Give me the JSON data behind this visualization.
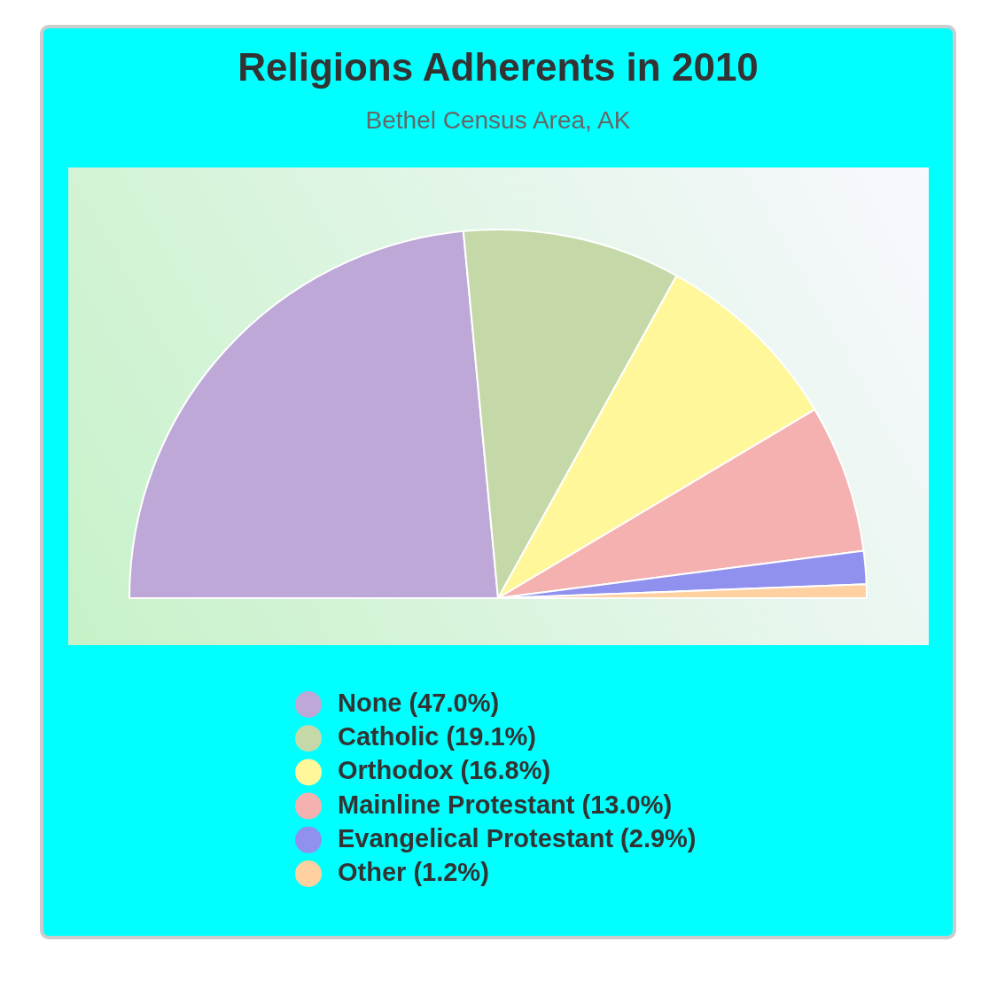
{
  "chart_data": {
    "type": "pie",
    "title": "Religions Adherents in 2010",
    "subtitle": "Bethel Census Area, AK",
    "categories": [
      "None (47.0%)",
      "Catholic (19.1%)",
      "Orthodox (16.8%)",
      "Mainline Protestant (13.0%)",
      "Evangelical Protestant (2.9%)",
      "Other (1.2%)"
    ],
    "values": [
      47.0,
      19.1,
      16.8,
      13.0,
      2.9,
      1.2
    ],
    "colors": [
      "#bea8d8",
      "#c5d9a8",
      "#fff799",
      "#f5b0b0",
      "#9090ee",
      "#ffd0a0"
    ],
    "legend": "bottom"
  }
}
